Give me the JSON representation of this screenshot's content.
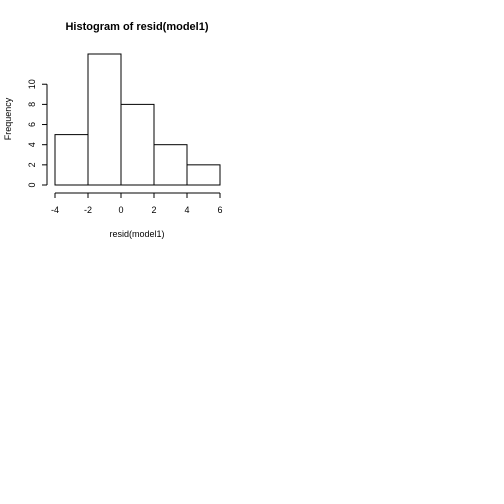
{
  "chart_data": {
    "type": "bar",
    "title": "Histogram of resid(model1)",
    "xlabel": "resid(model1)",
    "ylabel": "Frequency",
    "bins": [
      {
        "from": -4,
        "to": -2,
        "count": 5
      },
      {
        "from": -2,
        "to": 0,
        "count": 13
      },
      {
        "from": 0,
        "to": 2,
        "count": 8
      },
      {
        "from": 2,
        "to": 4,
        "count": 4
      },
      {
        "from": 4,
        "to": 6,
        "count": 2
      }
    ],
    "xlim": [
      -4,
      6
    ],
    "ylim": [
      0,
      13
    ],
    "xticks": [
      -4,
      -2,
      0,
      2,
      4,
      6
    ],
    "yticks": [
      0,
      2,
      4,
      6,
      8,
      10
    ],
    "grid": false
  }
}
